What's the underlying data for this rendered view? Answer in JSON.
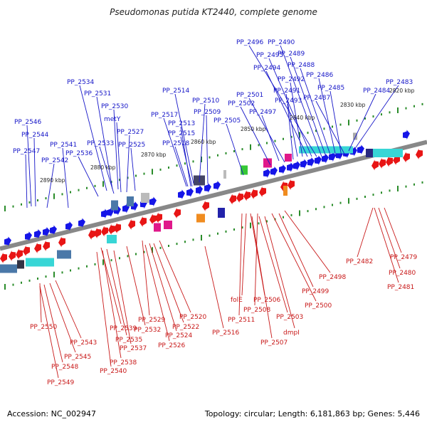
{
  "title": "Pseudomonas putida KT2440, complete genome",
  "footer": {
    "accession": "Accession: NC_002947",
    "summary": "Topology: circular; Length: 6,181,863 bp; Genes: 5,446"
  },
  "colors": {
    "forward_gene": "#1515e8",
    "reverse_gene": "#e81515",
    "forward_label": "#1616c8",
    "reverse_label": "#c81818",
    "backbone": "#888888",
    "tick": "#2a8c2a",
    "cyan_box": "#38d6d6",
    "magenta_box": "#e0188a",
    "green_box": "#36c836",
    "orange_box": "#f08c20",
    "steel_box": "#4a78a8"
  },
  "kbp_markers": [
    "2820 kbp",
    "2830 kbp",
    "2840 kbp",
    "2850 kbp",
    "2860 kbp",
    "2870 kbp",
    "2880 kbp",
    "2890 kbp"
  ],
  "top_labels": [
    "PP_2490",
    "PP_2496",
    "PP_2489",
    "PP_2495",
    "PP_2488",
    "PP_2494",
    "PP_2486",
    "PP_2492",
    "PP_2485",
    "PP_2491",
    "PP_2483",
    "PP_2484",
    "PP_2501",
    "PP_2493",
    "PP_2487",
    "PP_2502",
    "PP_2497",
    "PP_2534",
    "PP_2514",
    "PP_2531",
    "PP_2510",
    "PP_2530",
    "PP_2509",
    "PP_2517",
    "PP_2505",
    "metY",
    "PP_2513",
    "PP_2527",
    "PP_2546",
    "PP_2515",
    "PP_2544",
    "PP_2533",
    "PP_2525",
    "PP_2518",
    "PP_2541",
    "PP_2547",
    "PP_2536",
    "PP_2542"
  ],
  "bottom_labels": [
    "PP_2482",
    "PP_2479",
    "PP_2480",
    "PP_2498",
    "PP_2481",
    "PP_2499",
    "PP_2506",
    "folE",
    "PP_2500",
    "PP_2508",
    "PP_2511",
    "PP_2503",
    "PP_2520",
    "PP_2529",
    "dmpI",
    "PP_2516",
    "PP_2507",
    "PP_2522",
    "PP_2532",
    "PP_2550",
    "PP_2539",
    "PP_2524",
    "PP_2543",
    "PP_2535",
    "PP_2526",
    "PP_2537",
    "PP_2545",
    "PP_2538",
    "PP_2548",
    "PP_2540",
    "PP_2549"
  ]
}
